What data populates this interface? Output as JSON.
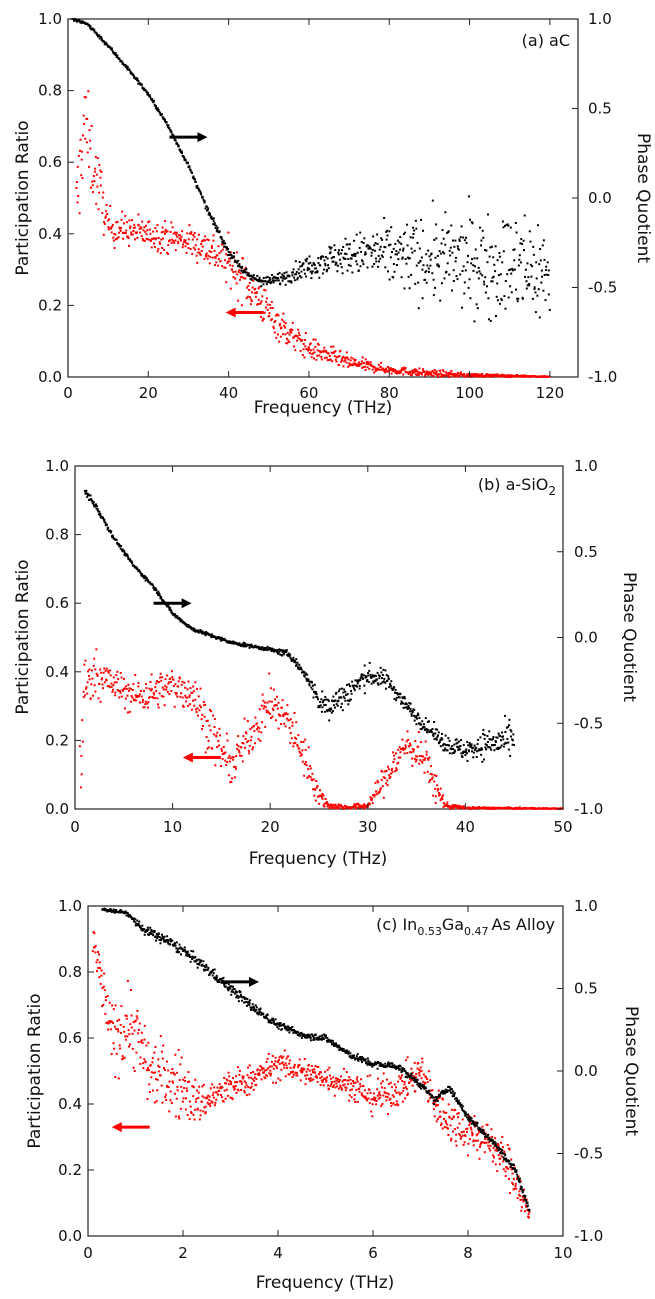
{
  "chart_data": [
    {
      "type": "scatter",
      "panel_label": "(a) aC",
      "xlabel": "Frequency (THz)",
      "ylabel_left": "Participation Ratio",
      "ylabel_right": "Phase Quotient",
      "xlim": [
        0,
        127
      ],
      "ylim_left": [
        0.0,
        1.0
      ],
      "ylim_right": [
        -1.0,
        1.0
      ],
      "xticks": [
        0,
        20,
        40,
        60,
        80,
        100,
        120
      ],
      "yticks_left": [
        0.0,
        0.2,
        0.4,
        0.6,
        0.8,
        1.0
      ],
      "yticks_right": [
        -1.0,
        -0.5,
        0.0,
        0.5,
        1.0
      ],
      "grid": false,
      "arrows": [
        {
          "points_to": "right-axis",
          "color": "#000000",
          "x": 30,
          "y_left": 0.67
        },
        {
          "points_to": "left-axis",
          "color": "#ff0000",
          "x": 44,
          "y_left": 0.18
        }
      ],
      "series": [
        {
          "axis": "left",
          "color": "#ff0000",
          "x": [
            2,
            4,
            6,
            8,
            10,
            15,
            20,
            25,
            30,
            35,
            40,
            45,
            50,
            55,
            60,
            70,
            80,
            90,
            100,
            110,
            120
          ],
          "y": [
            0.45,
            0.72,
            0.6,
            0.52,
            0.42,
            0.41,
            0.4,
            0.39,
            0.38,
            0.36,
            0.32,
            0.26,
            0.18,
            0.12,
            0.08,
            0.04,
            0.02,
            0.01,
            0.005,
            0.003,
            0.001
          ],
          "spread": [
            0.12,
            0.14,
            0.1,
            0.08,
            0.05,
            0.04,
            0.04,
            0.04,
            0.04,
            0.05,
            0.06,
            0.06,
            0.05,
            0.04,
            0.03,
            0.02,
            0.01,
            0.01,
            0.005,
            0.003,
            0.001
          ]
        },
        {
          "axis": "right",
          "color": "#000000",
          "x": [
            1,
            5,
            10,
            15,
            20,
            25,
            30,
            35,
            40,
            45,
            50,
            55,
            60,
            65,
            70,
            75,
            80,
            90,
            100,
            110,
            120
          ],
          "y": [
            1.0,
            0.97,
            0.85,
            0.72,
            0.58,
            0.4,
            0.18,
            -0.08,
            -0.3,
            -0.44,
            -0.47,
            -0.43,
            -0.38,
            -0.34,
            -0.32,
            -0.31,
            -0.32,
            -0.34,
            -0.36,
            -0.38,
            -0.42
          ],
          "spread": [
            0.01,
            0.01,
            0.01,
            0.01,
            0.01,
            0.01,
            0.01,
            0.015,
            0.02,
            0.02,
            0.03,
            0.04,
            0.06,
            0.08,
            0.1,
            0.13,
            0.17,
            0.22,
            0.25,
            0.28,
            0.3
          ]
        }
      ]
    },
    {
      "type": "scatter",
      "panel_label": "(b) a-SiO",
      "panel_label_subscript": "2",
      "xlabel": "Frequency (THz)",
      "ylabel_left": "Participation Ratio",
      "ylabel_right": "Phase Quotient",
      "xlim": [
        0,
        50
      ],
      "ylim_left": [
        0.0,
        1.0
      ],
      "ylim_right": [
        -1.0,
        1.0
      ],
      "xticks": [
        0,
        10,
        20,
        30,
        40,
        50
      ],
      "yticks_left": [
        0.0,
        0.2,
        0.4,
        0.6,
        0.8,
        1.0
      ],
      "yticks_right": [
        -1.0,
        -0.5,
        0.0,
        0.5,
        1.0
      ],
      "grid": false,
      "arrows": [
        {
          "points_to": "right-axis",
          "color": "#000000",
          "x": 10,
          "y_left": 0.6
        },
        {
          "points_to": "left-axis",
          "color": "#ff0000",
          "x": 13,
          "y_left": 0.15
        }
      ],
      "series": [
        {
          "axis": "left",
          "color": "#ff0000",
          "x": [
            0.5,
            1,
            2,
            4,
            6,
            8,
            10,
            12,
            14,
            16,
            18,
            20,
            22,
            24,
            25,
            26,
            28,
            30,
            32,
            34,
            36,
            37,
            38,
            40,
            45,
            50
          ],
          "y": [
            0.1,
            0.35,
            0.4,
            0.36,
            0.33,
            0.34,
            0.36,
            0.34,
            0.22,
            0.12,
            0.22,
            0.31,
            0.25,
            0.12,
            0.04,
            0.01,
            0.005,
            0.01,
            0.1,
            0.19,
            0.14,
            0.06,
            0.01,
            0.003,
            0.002,
            0.001
          ],
          "spread": [
            0.12,
            0.1,
            0.06,
            0.05,
            0.05,
            0.05,
            0.05,
            0.06,
            0.07,
            0.05,
            0.06,
            0.06,
            0.06,
            0.05,
            0.03,
            0.01,
            0.005,
            0.01,
            0.05,
            0.05,
            0.05,
            0.04,
            0.01,
            0.003,
            0.002,
            0.001
          ]
        },
        {
          "axis": "right",
          "color": "#000000",
          "x": [
            1,
            2,
            4,
            6,
            8,
            10,
            12,
            14,
            16,
            18,
            20,
            22,
            24,
            25,
            26,
            28,
            30,
            32,
            34,
            36,
            38,
            40,
            42,
            45
          ],
          "y": [
            0.85,
            0.78,
            0.58,
            0.42,
            0.3,
            0.14,
            0.05,
            0.01,
            -0.03,
            -0.05,
            -0.07,
            -0.1,
            -0.25,
            -0.38,
            -0.4,
            -0.32,
            -0.22,
            -0.25,
            -0.4,
            -0.52,
            -0.62,
            -0.66,
            -0.62,
            -0.6
          ],
          "spread": [
            0.03,
            0.02,
            0.01,
            0.01,
            0.01,
            0.01,
            0.01,
            0.01,
            0.01,
            0.01,
            0.01,
            0.02,
            0.03,
            0.06,
            0.08,
            0.08,
            0.06,
            0.05,
            0.04,
            0.04,
            0.05,
            0.06,
            0.08,
            0.1
          ]
        }
      ]
    },
    {
      "type": "scatter",
      "panel_label_parts": [
        "(c) In",
        "0.53",
        "Ga",
        "0.47",
        "As Alloy"
      ],
      "xlabel": "Frequency (THz)",
      "ylabel_left": "Participation Ratio",
      "ylabel_right": "Phase Quotient",
      "xlim": [
        0,
        10
      ],
      "ylim_left": [
        0.0,
        1.0
      ],
      "ylim_right": [
        -1.0,
        1.0
      ],
      "xticks": [
        0,
        2,
        4,
        6,
        8,
        10
      ],
      "yticks_left": [
        0.0,
        0.2,
        0.4,
        0.6,
        0.8,
        1.0
      ],
      "yticks_right": [
        -1.0,
        -0.5,
        0.0,
        0.5,
        1.0
      ],
      "grid": false,
      "arrows": [
        {
          "points_to": "right-axis",
          "color": "#000000",
          "x": 3.2,
          "y_left": 0.77
        },
        {
          "points_to": "left-axis",
          "color": "#ff0000",
          "x": 0.9,
          "y_left": 0.33
        }
      ],
      "series": [
        {
          "axis": "left",
          "color": "#ff0000",
          "x": [
            0.1,
            0.5,
            0.9,
            1.3,
            1.6,
            2.0,
            2.3,
            2.6,
            3.0,
            3.5,
            4.0,
            4.5,
            5.0,
            5.5,
            6.0,
            6.5,
            7.0,
            7.3,
            7.6,
            8.0,
            8.5,
            9.0,
            9.3
          ],
          "y": [
            0.9,
            0.6,
            0.65,
            0.5,
            0.48,
            0.45,
            0.4,
            0.42,
            0.45,
            0.48,
            0.52,
            0.5,
            0.48,
            0.46,
            0.42,
            0.44,
            0.5,
            0.4,
            0.35,
            0.32,
            0.28,
            0.18,
            0.05
          ],
          "spread": [
            0.05,
            0.1,
            0.12,
            0.1,
            0.1,
            0.1,
            0.06,
            0.05,
            0.05,
            0.04,
            0.04,
            0.04,
            0.04,
            0.04,
            0.05,
            0.05,
            0.05,
            0.06,
            0.06,
            0.06,
            0.06,
            0.06,
            0.04
          ]
        },
        {
          "axis": "right",
          "color": "#000000",
          "x": [
            0.3,
            0.8,
            1.2,
            1.6,
            2.0,
            2.5,
            3.0,
            3.5,
            4.0,
            4.5,
            5.0,
            5.5,
            6.0,
            6.5,
            7.0,
            7.3,
            7.6,
            8.0,
            8.5,
            9.0,
            9.3
          ],
          "y": [
            0.98,
            0.96,
            0.85,
            0.8,
            0.73,
            0.62,
            0.5,
            0.38,
            0.28,
            0.22,
            0.2,
            0.1,
            0.04,
            0.03,
            -0.08,
            -0.18,
            -0.1,
            -0.28,
            -0.42,
            -0.6,
            -0.85
          ],
          "spread": [
            0.01,
            0.01,
            0.03,
            0.03,
            0.03,
            0.03,
            0.03,
            0.03,
            0.02,
            0.02,
            0.02,
            0.02,
            0.02,
            0.02,
            0.02,
            0.02,
            0.02,
            0.02,
            0.02,
            0.02,
            0.02
          ]
        }
      ]
    }
  ]
}
